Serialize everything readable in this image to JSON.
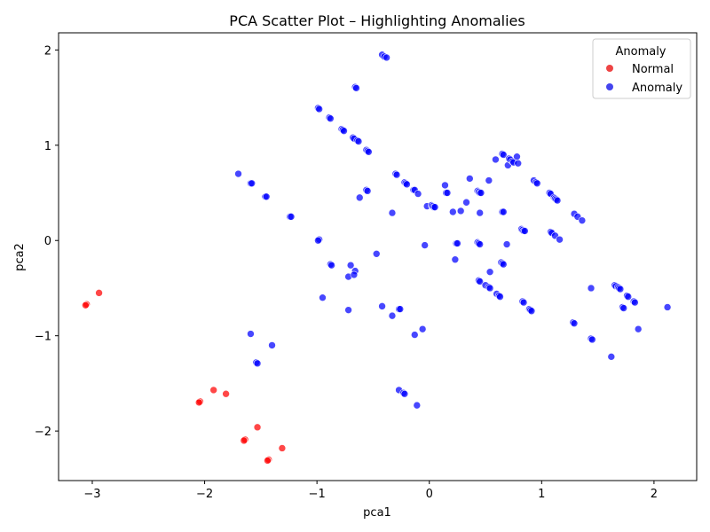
{
  "chart_data": {
    "type": "scatter",
    "title": "PCA Scatter Plot – Highlighting Anomalies",
    "xlabel": "pca1",
    "ylabel": "pca2",
    "xlim": [
      -3.3,
      2.38
    ],
    "ylim": [
      -2.52,
      2.18
    ],
    "xticks": [
      -3,
      -2,
      -1,
      0,
      1,
      2
    ],
    "yticks": [
      -2,
      -1,
      0,
      1,
      2
    ],
    "xtick_labels": [
      "−3",
      "−2",
      "−1",
      "0",
      "1",
      "2"
    ],
    "ytick_labels": [
      "−2",
      "−1",
      "0",
      "1",
      "2"
    ],
    "grid": false,
    "legend": {
      "title": "Anomaly",
      "placement": "top-right",
      "entries": [
        {
          "label": "Normal",
          "color": "#ee4444"
        },
        {
          "label": "Anomaly",
          "color": "#4444ee"
        }
      ]
    },
    "series": [
      {
        "name": "Normal",
        "color": "#ff0000",
        "points": [
          [
            -3.05,
            -0.67
          ],
          [
            -3.06,
            -0.68
          ],
          [
            -2.94,
            -0.55
          ],
          [
            -2.04,
            -1.69
          ],
          [
            -2.05,
            -1.7
          ],
          [
            -1.92,
            -1.57
          ],
          [
            -1.81,
            -1.61
          ],
          [
            -1.64,
            -2.09
          ],
          [
            -1.65,
            -2.1
          ],
          [
            -1.53,
            -1.96
          ],
          [
            -1.43,
            -2.3
          ],
          [
            -1.44,
            -2.31
          ],
          [
            -1.31,
            -2.18
          ]
        ]
      },
      {
        "name": "Anomaly",
        "color": "#0000ff",
        "points": [
          [
            -1.7,
            0.7
          ],
          [
            -1.59,
            0.6
          ],
          [
            -1.58,
            0.6
          ],
          [
            -1.46,
            0.46
          ],
          [
            -1.45,
            0.46
          ],
          [
            -1.24,
            0.25
          ],
          [
            -1.23,
            0.25
          ],
          [
            -1.59,
            -0.98
          ],
          [
            -1.54,
            -1.28
          ],
          [
            -1.53,
            -1.29
          ],
          [
            -1.4,
            -1.1
          ],
          [
            -0.99,
            1.39
          ],
          [
            -0.98,
            1.38
          ],
          [
            -0.89,
            1.29
          ],
          [
            -0.88,
            1.28
          ],
          [
            -0.78,
            1.17
          ],
          [
            -0.77,
            1.16
          ],
          [
            -0.76,
            1.15
          ],
          [
            -0.68,
            1.08
          ],
          [
            -0.67,
            1.07
          ],
          [
            -0.64,
            1.05
          ],
          [
            -0.63,
            1.04
          ],
          [
            -0.66,
            1.61
          ],
          [
            -0.65,
            1.6
          ],
          [
            -0.56,
            0.95
          ],
          [
            -0.55,
            0.94
          ],
          [
            -0.54,
            0.93
          ],
          [
            -0.62,
            0.45
          ],
          [
            -0.56,
            0.53
          ],
          [
            -0.55,
            0.52
          ],
          [
            -0.98,
            0.01
          ],
          [
            -0.99,
            0.0
          ],
          [
            -0.88,
            -0.25
          ],
          [
            -0.87,
            -0.26
          ],
          [
            -0.95,
            -0.6
          ],
          [
            -0.72,
            -0.38
          ],
          [
            -0.7,
            -0.26
          ],
          [
            -0.66,
            -0.32
          ],
          [
            -0.67,
            -0.36
          ],
          [
            -0.72,
            -0.73
          ],
          [
            -0.47,
            -0.14
          ],
          [
            -0.42,
            1.95
          ],
          [
            -0.4,
            1.93
          ],
          [
            -0.38,
            1.92
          ],
          [
            -0.3,
            0.7
          ],
          [
            -0.29,
            0.69
          ],
          [
            -0.22,
            0.61
          ],
          [
            -0.21,
            0.6
          ],
          [
            -0.2,
            0.59
          ],
          [
            -0.14,
            0.53
          ],
          [
            -0.13,
            0.53
          ],
          [
            -0.1,
            0.49
          ],
          [
            -0.33,
            0.29
          ],
          [
            -0.42,
            -0.69
          ],
          [
            -0.33,
            -0.79
          ],
          [
            -0.27,
            -0.72
          ],
          [
            -0.26,
            -0.72
          ],
          [
            -0.27,
            -1.57
          ],
          [
            -0.23,
            -1.6
          ],
          [
            -0.22,
            -1.61
          ],
          [
            -0.13,
            -0.99
          ],
          [
            -0.06,
            -0.93
          ],
          [
            -0.11,
            -1.73
          ],
          [
            -0.04,
            -0.05
          ],
          [
            -0.02,
            0.36
          ],
          [
            0.02,
            0.37
          ],
          [
            0.03,
            0.36
          ],
          [
            0.04,
            0.35
          ],
          [
            0.05,
            0.35
          ],
          [
            0.14,
            0.58
          ],
          [
            0.15,
            0.5
          ],
          [
            0.16,
            0.5
          ],
          [
            0.21,
            0.3
          ],
          [
            0.28,
            0.31
          ],
          [
            0.33,
            0.4
          ],
          [
            0.36,
            0.65
          ],
          [
            0.23,
            -0.2
          ],
          [
            0.24,
            -0.03
          ],
          [
            0.25,
            -0.03
          ],
          [
            0.43,
            0.52
          ],
          [
            0.44,
            0.51
          ],
          [
            0.45,
            0.5
          ],
          [
            0.46,
            0.5
          ],
          [
            0.45,
            0.29
          ],
          [
            0.43,
            -0.02
          ],
          [
            0.44,
            -0.03
          ],
          [
            0.45,
            -0.04
          ],
          [
            0.44,
            -0.42
          ],
          [
            0.45,
            -0.43
          ],
          [
            0.5,
            -0.47
          ],
          [
            0.53,
            -0.49
          ],
          [
            0.54,
            -0.5
          ],
          [
            0.54,
            -0.33
          ],
          [
            0.53,
            0.63
          ],
          [
            0.59,
            0.85
          ],
          [
            0.6,
            -0.56
          ],
          [
            0.62,
            -0.58
          ],
          [
            0.63,
            -0.59
          ],
          [
            0.64,
            -0.23
          ],
          [
            0.65,
            -0.24
          ],
          [
            0.66,
            -0.25
          ],
          [
            0.65,
            0.91
          ],
          [
            0.66,
            0.9
          ],
          [
            0.65,
            0.3
          ],
          [
            0.66,
            0.3
          ],
          [
            0.69,
            -0.04
          ],
          [
            0.7,
            0.79
          ],
          [
            0.71,
            0.86
          ],
          [
            0.72,
            0.85
          ],
          [
            0.74,
            0.83
          ],
          [
            0.75,
            0.82
          ],
          [
            0.78,
            0.88
          ],
          [
            0.79,
            0.81
          ],
          [
            0.82,
            0.12
          ],
          [
            0.83,
            0.11
          ],
          [
            0.84,
            0.1
          ],
          [
            0.85,
            0.1
          ],
          [
            0.83,
            -0.64
          ],
          [
            0.84,
            -0.65
          ],
          [
            0.89,
            -0.72
          ],
          [
            0.9,
            -0.73
          ],
          [
            0.91,
            -0.74
          ],
          [
            0.93,
            0.63
          ],
          [
            0.95,
            0.61
          ],
          [
            0.96,
            0.6
          ],
          [
            1.07,
            0.5
          ],
          [
            1.08,
            0.49
          ],
          [
            1.11,
            0.45
          ],
          [
            1.12,
            0.44
          ],
          [
            1.13,
            0.43
          ],
          [
            1.14,
            0.42
          ],
          [
            1.08,
            0.09
          ],
          [
            1.09,
            0.08
          ],
          [
            1.12,
            0.05
          ],
          [
            1.16,
            0.01
          ],
          [
            1.29,
            0.28
          ],
          [
            1.32,
            0.25
          ],
          [
            1.36,
            0.21
          ],
          [
            1.28,
            -0.86
          ],
          [
            1.29,
            -0.87
          ],
          [
            1.44,
            -0.5
          ],
          [
            1.44,
            -1.03
          ],
          [
            1.45,
            -1.04
          ],
          [
            1.62,
            -1.22
          ],
          [
            1.65,
            -0.47
          ],
          [
            1.66,
            -0.48
          ],
          [
            1.68,
            -0.49
          ],
          [
            1.69,
            -0.5
          ],
          [
            1.7,
            -0.51
          ],
          [
            1.72,
            -0.7
          ],
          [
            1.73,
            -0.71
          ],
          [
            1.76,
            -0.58
          ],
          [
            1.77,
            -0.59
          ],
          [
            1.82,
            -0.64
          ],
          [
            1.83,
            -0.65
          ],
          [
            1.86,
            -0.93
          ],
          [
            2.12,
            -0.7
          ]
        ]
      }
    ]
  }
}
